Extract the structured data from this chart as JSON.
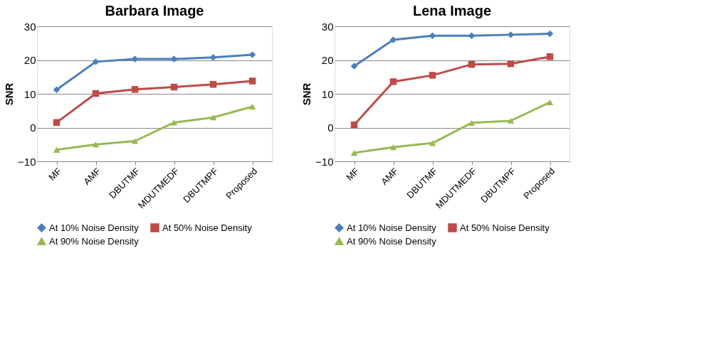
{
  "chart_data": [
    {
      "type": "line",
      "title": "Barbara Image",
      "ylabel": "SNR",
      "categories": [
        "MF",
        "AMF",
        "DBUTMF",
        "MDUTMEDF",
        "DBUTMPF",
        "Proposed"
      ],
      "ylim": [
        -10,
        30
      ],
      "yticks": [
        -10,
        0,
        10,
        20,
        30
      ],
      "grid": "y",
      "legend": "bottom",
      "series": [
        {
          "name": "At 10%  Noise Density",
          "color": "#4a7ebb",
          "marker": "diamond",
          "values": [
            11.2,
            19.5,
            20.3,
            20.3,
            20.8,
            21.6
          ]
        },
        {
          "name": "At 50%  Noise Density",
          "color": "#be4b48",
          "marker": "square",
          "values": [
            1.5,
            10.1,
            11.3,
            12.0,
            12.8,
            13.8
          ]
        },
        {
          "name": "At 90%  Noise Density",
          "color": "#98b954",
          "marker": "triangle",
          "values": [
            -6.6,
            -5.0,
            -4.0,
            1.5,
            3.0,
            6.2
          ]
        }
      ]
    },
    {
      "type": "line",
      "title": "Lena Image",
      "ylabel": "SNR",
      "categories": [
        "MF",
        "AMF",
        "DBUTMF",
        "MDUTMEDF",
        "DBUTMPF",
        "Proposed"
      ],
      "ylim": [
        -10,
        30
      ],
      "yticks": [
        -10,
        0,
        10,
        20,
        30
      ],
      "grid": "y",
      "legend": "bottom",
      "series": [
        {
          "name": "At 10%  Noise Density",
          "color": "#4a7ebb",
          "marker": "diamond",
          "values": [
            18.2,
            26.0,
            27.2,
            27.2,
            27.5,
            27.8
          ]
        },
        {
          "name": "At 50%  Noise Density",
          "color": "#be4b48",
          "marker": "square",
          "values": [
            0.8,
            13.6,
            15.5,
            18.7,
            18.9,
            21.0
          ]
        },
        {
          "name": "At 90%  Noise Density",
          "color": "#98b954",
          "marker": "triangle",
          "values": [
            -7.5,
            -5.8,
            -4.6,
            1.4,
            2.0,
            7.5
          ]
        }
      ]
    }
  ]
}
